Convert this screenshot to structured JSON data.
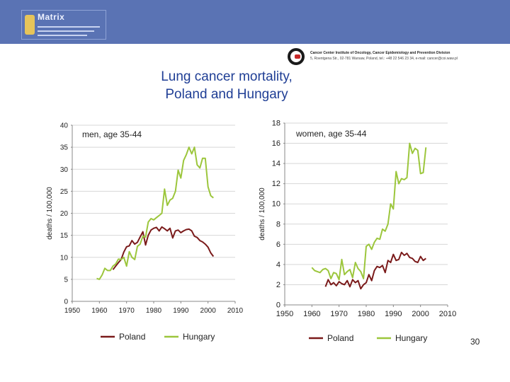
{
  "banner": {
    "logo_text": "Matrix"
  },
  "institute": {
    "line1": "Cancer Center Institute of Oncology, Cancer Epidemiology and Prevention Division",
    "line2": "5, Roentgena Str., 02-781 Warsaw, Poland, tel.: +48 22 546 23 34, e-mail: cancer@coi.waw.pl"
  },
  "title": {
    "line1": "Lung cancer mortality,",
    "line2": "Poland and Hungary"
  },
  "page_number": "30",
  "colors": {
    "poland": "#7a1a1a",
    "hungary": "#9cc63c",
    "title": "#1f3e95",
    "banner": "#5a73b4"
  },
  "chart_data": [
    {
      "type": "line",
      "title": "men, age 35-44",
      "xlabel": "",
      "ylabel": "deaths / 100,000",
      "xlim": [
        1950,
        2010
      ],
      "ylim": [
        0,
        40
      ],
      "xticks": [
        1950,
        1960,
        1970,
        1980,
        1990,
        2000,
        2010
      ],
      "yticks": [
        0,
        5,
        10,
        15,
        20,
        25,
        30,
        35,
        40
      ],
      "legend_position": "bottom",
      "series": [
        {
          "name": "Poland",
          "color": "#7a1a1a",
          "x": [
            1965,
            1966,
            1967,
            1968,
            1969,
            1970,
            1971,
            1972,
            1973,
            1974,
            1975,
            1976,
            1977,
            1978,
            1979,
            1980,
            1981,
            1982,
            1983,
            1984,
            1985,
            1986,
            1987,
            1988,
            1989,
            1990,
            1991,
            1992,
            1993,
            1994,
            1995,
            1996,
            1997,
            1998,
            1999,
            2000,
            2001,
            2002
          ],
          "y": [
            7.2,
            8.0,
            8.8,
            9.5,
            11.2,
            12.4,
            12.6,
            13.8,
            13.0,
            13.4,
            14.6,
            15.8,
            12.8,
            15.0,
            16.2,
            16.6,
            16.8,
            16.0,
            16.9,
            16.5,
            16.0,
            16.6,
            14.4,
            16.0,
            16.2,
            15.6,
            16.0,
            16.3,
            16.4,
            16.0,
            14.8,
            14.5,
            13.8,
            13.5,
            13.0,
            12.3,
            11.0,
            10.2
          ]
        },
        {
          "name": "Hungary",
          "color": "#9cc63c",
          "x": [
            1959,
            1960,
            1961,
            1962,
            1963,
            1964,
            1965,
            1966,
            1967,
            1968,
            1969,
            1970,
            1971,
            1972,
            1973,
            1974,
            1975,
            1976,
            1977,
            1978,
            1979,
            1980,
            1981,
            1982,
            1983,
            1984,
            1985,
            1986,
            1987,
            1988,
            1989,
            1990,
            1991,
            1992,
            1993,
            1994,
            1995,
            1996,
            1997,
            1998,
            1999,
            2000,
            2001,
            2002
          ],
          "y": [
            5.2,
            5.0,
            6.0,
            7.5,
            7.0,
            7.0,
            8.0,
            8.5,
            9.6,
            9.5,
            10.0,
            8.0,
            11.3,
            10.0,
            9.5,
            12.5,
            13.0,
            14.8,
            14.6,
            18.0,
            18.8,
            18.5,
            19.0,
            19.5,
            20.0,
            25.5,
            21.8,
            23.0,
            23.4,
            25.0,
            29.8,
            28.0,
            32.0,
            33.3,
            35.0,
            33.5,
            35.0,
            31.0,
            30.3,
            32.5,
            32.5,
            26.0,
            24.0,
            23.5
          ]
        }
      ]
    },
    {
      "type": "line",
      "title": "women, age 35-44",
      "xlabel": "",
      "ylabel": "deaths / 100,000",
      "xlim": [
        1950,
        2010
      ],
      "ylim": [
        0,
        18
      ],
      "xticks": [
        1950,
        1960,
        1970,
        1980,
        1990,
        2000,
        2010
      ],
      "yticks": [
        0,
        2,
        4,
        6,
        8,
        10,
        12,
        14,
        16,
        18
      ],
      "legend_position": "bottom",
      "series": [
        {
          "name": "Poland",
          "color": "#7a1a1a",
          "x": [
            1965,
            1966,
            1967,
            1968,
            1969,
            1970,
            1971,
            1972,
            1973,
            1974,
            1975,
            1976,
            1977,
            1978,
            1979,
            1980,
            1981,
            1982,
            1983,
            1984,
            1985,
            1986,
            1987,
            1988,
            1989,
            1990,
            1991,
            1992,
            1993,
            1994,
            1995,
            1996,
            1997,
            1998,
            1999,
            2000,
            2001,
            2002
          ],
          "y": [
            1.8,
            2.5,
            2.0,
            2.2,
            1.9,
            2.3,
            2.1,
            2.0,
            2.4,
            1.8,
            2.5,
            2.2,
            2.4,
            1.6,
            2.0,
            2.2,
            3.0,
            2.4,
            3.4,
            3.8,
            3.7,
            3.9,
            3.2,
            4.4,
            4.2,
            5.0,
            4.4,
            4.5,
            5.2,
            4.9,
            5.1,
            4.7,
            4.6,
            4.3,
            4.2,
            4.8,
            4.4,
            4.6
          ]
        },
        {
          "name": "Hungary",
          "color": "#9cc63c",
          "x": [
            1960,
            1961,
            1962,
            1963,
            1964,
            1965,
            1966,
            1967,
            1968,
            1969,
            1970,
            1971,
            1972,
            1973,
            1974,
            1975,
            1976,
            1977,
            1978,
            1979,
            1980,
            1981,
            1982,
            1983,
            1984,
            1985,
            1986,
            1987,
            1988,
            1989,
            1990,
            1991,
            1992,
            1993,
            1994,
            1995,
            1996,
            1997,
            1998,
            1999,
            2000,
            2001,
            2002
          ],
          "y": [
            3.7,
            3.4,
            3.3,
            3.2,
            3.5,
            3.6,
            3.4,
            2.6,
            3.2,
            3.1,
            2.5,
            4.5,
            3.0,
            3.3,
            3.5,
            2.7,
            4.2,
            3.6,
            3.3,
            2.6,
            5.8,
            6.0,
            5.5,
            6.2,
            6.6,
            6.5,
            7.5,
            7.3,
            8.0,
            10.0,
            9.5,
            13.2,
            12.0,
            12.5,
            12.4,
            12.6,
            16.0,
            15.0,
            15.5,
            15.3,
            13.0,
            13.1,
            15.6
          ]
        }
      ]
    }
  ]
}
